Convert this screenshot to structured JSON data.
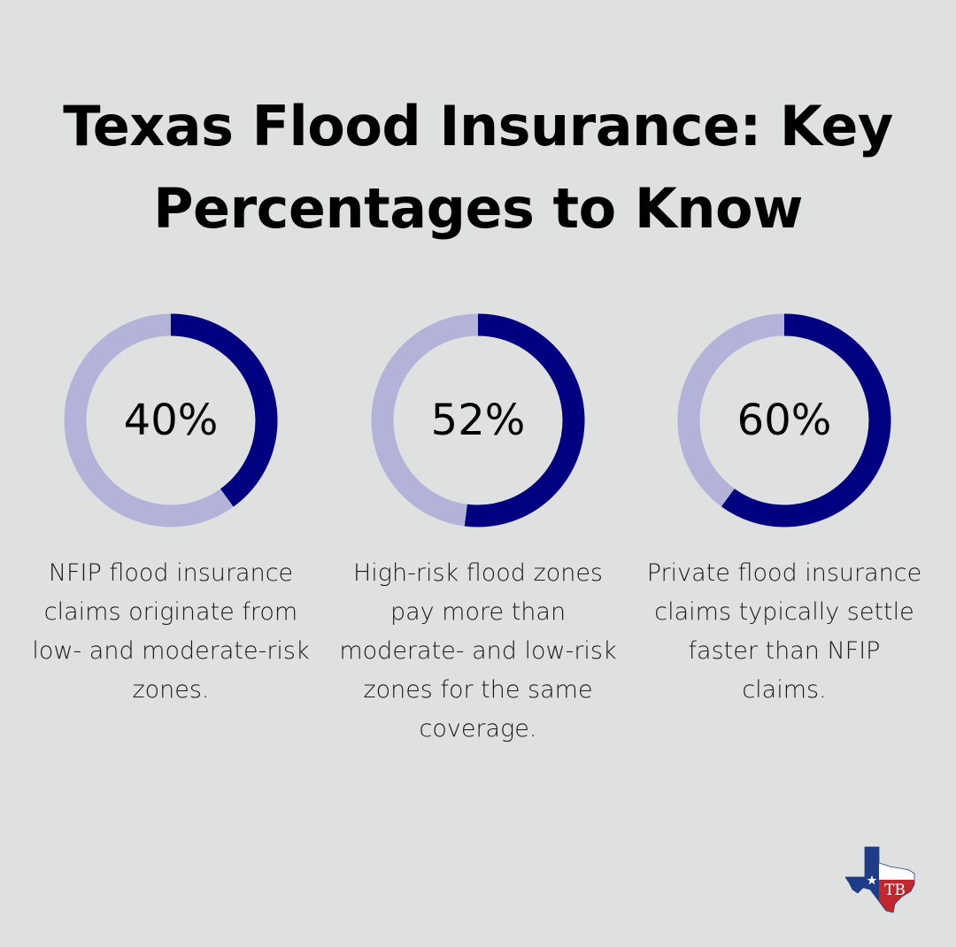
{
  "title_lines": [
    "Texas Flood Insurance: Key",
    "Percentages to Know"
  ],
  "colors": {
    "background": "#dfe0e0",
    "ring_filled": "#000080",
    "ring_track": "#b3b3d9"
  },
  "chart_data": [
    {
      "type": "pie",
      "value": 40,
      "label": "40%",
      "caption": "NFIP flood insurance claims originate from low- and moderate-risk zones."
    },
    {
      "type": "pie",
      "value": 52,
      "label": "52%",
      "caption": "High-risk flood zones pay more than moderate- and low-risk zones for the same coverage."
    },
    {
      "type": "pie",
      "value": 60,
      "label": "60%",
      "caption": "Private flood insurance claims typically settle faster than NFIP claims."
    }
  ],
  "logo": {
    "icon": "texas-map-logo-icon",
    "monogram": "TB"
  }
}
